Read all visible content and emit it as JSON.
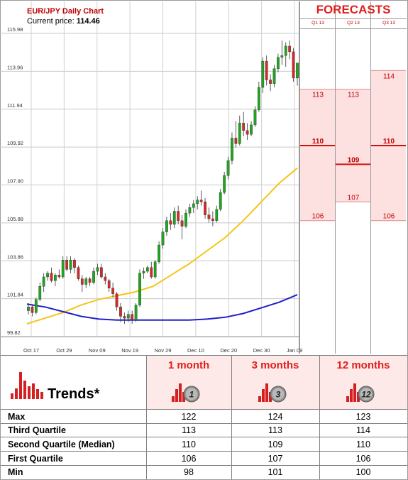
{
  "header": {
    "title": "EUR/JPY Daily Chart",
    "price_label": "Current price:",
    "price_value": "114.46"
  },
  "forecasts": {
    "title": "FORECASTS",
    "columns": [
      "Q1 13",
      "Q2 13",
      "Q3 13"
    ]
  },
  "colors": {
    "up_candle": "#1ea71e",
    "down_candle": "#d42a2a",
    "ma_short": "#f5c518",
    "ma_long": "#2020c8",
    "forecast_fill": "#fde0e0",
    "forecast_line": "#d01010",
    "accent": "#e02020"
  },
  "chart_data": {
    "type": "candlestick",
    "title": "EUR/JPY Daily Chart",
    "ylim": [
      99.82,
      115.98
    ],
    "y_ticks": [
      "115.98",
      "113.96",
      "111.94",
      "109.92",
      "107.90",
      "105.88",
      "103.86",
      "101.84",
      "99.82"
    ],
    "x_ticks": [
      "Oct 17",
      "Oct 29",
      "Nov 09",
      "Nov 19",
      "Nov 29",
      "Dec 10",
      "Dec 20",
      "Dec 30",
      "Jan 09"
    ],
    "grid": true,
    "candles": [
      [
        101.2,
        101.6,
        101.0,
        101.4
      ],
      [
        101.4,
        101.5,
        100.9,
        101.1
      ],
      [
        101.1,
        101.9,
        101.0,
        101.8
      ],
      [
        101.8,
        102.7,
        101.7,
        102.5
      ],
      [
        102.5,
        103.2,
        102.2,
        103.0
      ],
      [
        103.0,
        103.3,
        102.8,
        103.2
      ],
      [
        103.2,
        103.5,
        102.7,
        102.8
      ],
      [
        102.8,
        103.2,
        102.5,
        103.1
      ],
      [
        103.1,
        103.4,
        102.9,
        103.0
      ],
      [
        103.0,
        104.1,
        102.9,
        103.9
      ],
      [
        103.9,
        104.1,
        103.3,
        103.4
      ],
      [
        103.4,
        104.1,
        103.2,
        103.9
      ],
      [
        103.9,
        104.0,
        103.2,
        103.5
      ],
      [
        103.5,
        103.6,
        102.8,
        102.9
      ],
      [
        102.9,
        103.1,
        102.2,
        102.6
      ],
      [
        102.6,
        103.0,
        102.4,
        102.9
      ],
      [
        102.9,
        103.0,
        102.5,
        102.7
      ],
      [
        102.7,
        103.5,
        102.6,
        103.3
      ],
      [
        103.3,
        103.7,
        103.1,
        103.5
      ],
      [
        103.5,
        103.7,
        102.9,
        103.0
      ],
      [
        103.0,
        103.2,
        102.6,
        102.8
      ],
      [
        102.8,
        102.9,
        102.2,
        102.4
      ],
      [
        102.4,
        102.7,
        101.9,
        102.1
      ],
      [
        102.1,
        102.2,
        101.2,
        101.4
      ],
      [
        101.4,
        101.6,
        100.6,
        100.9
      ],
      [
        100.9,
        101.1,
        100.5,
        100.8
      ],
      [
        100.8,
        101.2,
        100.6,
        101.0
      ],
      [
        101.0,
        101.2,
        100.5,
        100.7
      ],
      [
        100.7,
        101.6,
        100.6,
        101.5
      ],
      [
        101.5,
        103.4,
        101.4,
        103.2
      ],
      [
        103.2,
        103.5,
        102.9,
        103.3
      ],
      [
        103.3,
        103.6,
        103.2,
        103.5
      ],
      [
        103.5,
        103.8,
        102.9,
        103.0
      ],
      [
        103.0,
        103.9,
        102.9,
        103.8
      ],
      [
        103.8,
        104.9,
        103.7,
        104.7
      ],
      [
        104.7,
        105.6,
        104.5,
        105.4
      ],
      [
        105.4,
        106.2,
        105.2,
        106.0
      ],
      [
        106.0,
        106.4,
        105.5,
        105.8
      ],
      [
        105.8,
        106.7,
        105.6,
        106.5
      ],
      [
        106.5,
        106.8,
        105.8,
        106.0
      ],
      [
        106.0,
        106.3,
        105.0,
        105.7
      ],
      [
        105.7,
        106.6,
        105.6,
        106.4
      ],
      [
        106.4,
        106.9,
        106.2,
        106.7
      ],
      [
        106.7,
        107.1,
        106.4,
        106.9
      ],
      [
        106.9,
        107.3,
        106.6,
        107.1
      ],
      [
        107.1,
        107.6,
        106.8,
        107.0
      ],
      [
        107.0,
        107.2,
        106.1,
        106.3
      ],
      [
        106.3,
        106.7,
        105.9,
        106.1
      ],
      [
        106.1,
        106.5,
        105.7,
        106.0
      ],
      [
        106.0,
        106.8,
        105.9,
        106.6
      ],
      [
        106.6,
        107.7,
        106.5,
        107.5
      ],
      [
        107.5,
        108.6,
        107.4,
        108.4
      ],
      [
        108.4,
        109.4,
        108.2,
        109.2
      ],
      [
        109.2,
        110.7,
        109.0,
        110.4
      ],
      [
        110.4,
        111.3,
        109.9,
        110.1
      ],
      [
        110.1,
        111.6,
        110.0,
        111.2
      ],
      [
        111.2,
        111.8,
        110.5,
        110.8
      ],
      [
        110.8,
        111.2,
        110.3,
        110.6
      ],
      [
        110.6,
        111.3,
        110.5,
        111.1
      ],
      [
        111.1,
        112.1,
        111.0,
        111.9
      ],
      [
        111.9,
        113.4,
        111.8,
        113.1
      ],
      [
        113.1,
        114.7,
        112.8,
        114.5
      ],
      [
        114.5,
        114.8,
        113.2,
        113.5
      ],
      [
        113.5,
        113.8,
        112.9,
        113.3
      ],
      [
        113.3,
        114.3,
        113.1,
        114.1
      ],
      [
        114.1,
        114.9,
        113.9,
        114.7
      ],
      [
        114.7,
        115.6,
        114.3,
        114.8
      ],
      [
        114.8,
        115.5,
        114.2,
        115.3
      ],
      [
        115.3,
        115.6,
        114.6,
        115.0
      ],
      [
        115.0,
        115.2,
        113.4,
        113.6
      ],
      [
        113.6,
        114.3,
        113.2,
        114.4
      ]
    ],
    "ma_short": [
      100.5,
      100.8,
      101.1,
      101.5,
      101.8,
      102.0,
      102.2,
      102.5,
      103.1,
      103.7,
      104.4,
      105.1,
      106.0,
      107.0,
      108.0,
      108.8
    ],
    "ma_long": [
      101.55,
      101.4,
      101.15,
      100.9,
      100.75,
      100.7,
      100.7,
      100.7,
      100.7,
      100.7,
      100.75,
      100.85,
      101.05,
      101.35,
      101.65,
      102.05
    ],
    "forecasts": [
      {
        "period": "Q1 13",
        "q3": 113,
        "median": 110,
        "q1": 106
      },
      {
        "period": "Q2 13",
        "q3": 113,
        "median": 109,
        "q1": 107
      },
      {
        "period": "Q3 13",
        "q3": 114,
        "median": 110,
        "q1": 106
      }
    ]
  },
  "trends_table": {
    "label": "Trends*",
    "periods": [
      "1 month",
      "3 months",
      "12 months"
    ],
    "badges": [
      "1",
      "3",
      "12"
    ],
    "rows": [
      {
        "label": "Max",
        "values": [
          "122",
          "124",
          "123"
        ]
      },
      {
        "label": "Third Quartile",
        "values": [
          "113",
          "113",
          "114"
        ]
      },
      {
        "label": "Second Quartile (Median)",
        "values": [
          "110",
          "109",
          "110"
        ]
      },
      {
        "label": "First Quartile",
        "values": [
          "106",
          "107",
          "106"
        ]
      },
      {
        "label": "Min",
        "values": [
          "98",
          "101",
          "100"
        ]
      }
    ]
  }
}
